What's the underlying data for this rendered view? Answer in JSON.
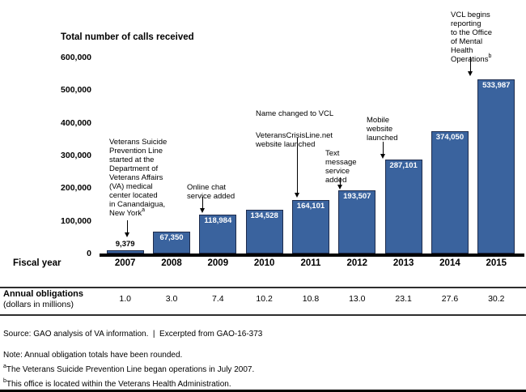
{
  "chart_data": {
    "type": "bar",
    "title": "Total number of calls received",
    "xlabel": "Fiscal year",
    "ylabel": "Total number of calls received",
    "categories": [
      "2007",
      "2008",
      "2009",
      "2010",
      "2011",
      "2012",
      "2013",
      "2014",
      "2015"
    ],
    "values": [
      9379,
      67350,
      118984,
      134528,
      164101,
      193507,
      287101,
      374050,
      533987
    ],
    "value_labels": [
      "9,379",
      "67,350",
      "118,984",
      "134,528",
      "164,101",
      "193,507",
      "287,101",
      "374,050",
      "533,987"
    ],
    "ylim": [
      0,
      600000
    ],
    "ytick_labels": [
      "600,000",
      "500,000",
      "400,000",
      "300,000",
      "200,000",
      "100,000",
      "0"
    ],
    "grid": false,
    "legend": "none",
    "bar_color": "#3a639e",
    "bar_border_color": "#1e2c4d",
    "annotations": {
      "start": {
        "target": "2007",
        "lines": [
          "Veterans Suicide",
          "Prevention Line",
          "started at the",
          "Department of",
          "Veterans Affairs",
          "(VA) medical",
          "center located",
          "in Canandaigua,",
          "New York"
        ],
        "sup": "a"
      },
      "online_chat": {
        "target": "2009",
        "lines": [
          "Online chat",
          "service added"
        ]
      },
      "name_change": {
        "target": "2011",
        "heading": "Name changed to VCL",
        "lines": [
          "VeteransCrisisLine.net",
          "website launched"
        ]
      },
      "text_message": {
        "target": "2012",
        "lines": [
          "Text",
          "message",
          "service",
          "added"
        ]
      },
      "mobile": {
        "target": "2013",
        "lines": [
          "Mobile",
          "website",
          "launched"
        ]
      },
      "vcl_reporting": {
        "target": "2015",
        "lines": [
          "VCL begins",
          "reporting",
          "to the Office",
          "of Mental",
          "Health",
          "Operations"
        ],
        "sup": "b"
      }
    }
  },
  "obligations": {
    "label": "Annual obligations",
    "sublabel": "(dollars in millions)",
    "values": [
      "1.0",
      "3.0",
      "7.4",
      "10.2",
      "10.8",
      "13.0",
      "23.1",
      "27.6",
      "30.2"
    ]
  },
  "footer": {
    "source": "Source: GAO analysis of VA information.  |  Excerpted from GAO-16-373",
    "note": "Note: Annual obligation totals have been rounded.",
    "footnote_a": {
      "marker": "a",
      "text": "The Veterans Suicide Prevention Line began operations in July 2007."
    },
    "footnote_b": {
      "marker": "b",
      "text": "This office is located within the Veterans Health Administration."
    }
  }
}
